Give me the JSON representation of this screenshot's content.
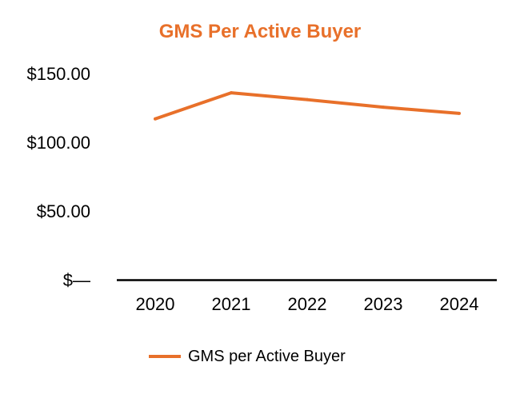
{
  "chart_data": {
    "type": "line",
    "title": "GMS Per Active Buyer",
    "categories": [
      "2020",
      "2021",
      "2022",
      "2023",
      "2024"
    ],
    "series": [
      {
        "name": "GMS per Active Buyer",
        "values": [
          117,
          136,
          131,
          125.5,
          121
        ],
        "color": "#E8702A"
      }
    ],
    "y_tick_labels": [
      "$—",
      "$50.00",
      "$100.00",
      "$150.00"
    ],
    "y_ticks": [
      0,
      50,
      100,
      150
    ],
    "ylim": [
      0,
      150
    ],
    "xlabel": "",
    "ylabel": "",
    "grid": false,
    "legend_position": "bottom",
    "title_color": "#E8702A",
    "axis_color": "#000000",
    "text_color": "#000000"
  }
}
